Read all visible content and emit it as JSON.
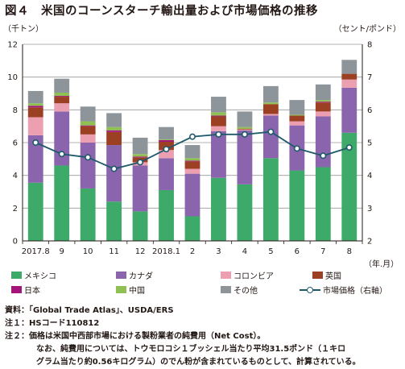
{
  "title": "図４　米国のコーンスターチ輸出量および市場価格の推移",
  "chart_data": {
    "type": "bar",
    "stacked": true,
    "categories": [
      "2017.8",
      "9",
      "10",
      "11",
      "12",
      "2018.1",
      "2",
      "3",
      "4",
      "5",
      "6",
      "7",
      "8"
    ],
    "xlabel": "（年.月）",
    "ylabel_left": "（千トン）",
    "ylabel_right": "（セント/ポンド）",
    "ylim_left": [
      0,
      12
    ],
    "yticks_left": [
      0,
      2,
      4,
      6,
      8,
      10,
      12
    ],
    "ylim_right": [
      2,
      8
    ],
    "yticks_right": [
      2,
      3,
      4,
      5,
      6,
      7,
      8
    ],
    "grid": true,
    "legend_position": "bottom",
    "series": [
      {
        "name": "メキシコ",
        "color": "#3daa6a",
        "values": [
          3.55,
          4.6,
          3.2,
          2.4,
          1.8,
          3.1,
          1.5,
          3.85,
          3.45,
          5.05,
          4.3,
          4.5,
          6.6
        ]
      },
      {
        "name": "カナダ",
        "color": "#8a65ad",
        "values": [
          2.9,
          3.3,
          2.8,
          3.45,
          2.8,
          1.95,
          2.6,
          2.85,
          3.3,
          2.6,
          2.75,
          3.1,
          2.75
        ]
      },
      {
        "name": "コロンビア",
        "color": "#ec9fb0",
        "values": [
          1.1,
          0.5,
          0.5,
          0.0,
          0.2,
          0.5,
          0.3,
          0.3,
          0.05,
          0.1,
          0.25,
          0.3,
          0.5
        ]
      },
      {
        "name": "英国",
        "color": "#9c4023",
        "values": [
          0.6,
          0.4,
          0.5,
          0.8,
          0.3,
          0.5,
          0.45,
          0.6,
          0.05,
          0.6,
          0.35,
          0.55,
          0.35
        ]
      },
      {
        "name": "日本",
        "color": "#a3157a",
        "values": [
          0.1,
          0.05,
          0.05,
          0.1,
          0.05,
          0.1,
          0.05,
          0.05,
          0.0,
          0.0,
          0.0,
          0.05,
          0.0
        ]
      },
      {
        "name": "中国",
        "color": "#8ec152",
        "values": [
          0.15,
          0.2,
          0.25,
          0.2,
          0.15,
          0.05,
          0.15,
          0.2,
          0.1,
          0.1,
          0.05,
          0.1,
          0.0
        ]
      },
      {
        "name": "その他",
        "color": "#8d959b",
        "values": [
          0.75,
          0.85,
          0.9,
          0.85,
          1.0,
          0.75,
          0.8,
          0.95,
          0.95,
          1.0,
          0.9,
          0.95,
          0.85
        ]
      }
    ],
    "line_series": {
      "name": "市場価格（右軸）",
      "color": "#1e5a6a",
      "axis": "right",
      "values": [
        5.0,
        4.65,
        4.55,
        4.2,
        4.4,
        4.8,
        5.18,
        5.25,
        5.25,
        5.33,
        4.82,
        4.6,
        4.85
      ]
    }
  },
  "notes": {
    "source": "資料：「Global Trade Atlas」、USDA/ERS",
    "note1": "注１：HSコード110812",
    "note2": "注２：価格は米国中西部市場における製粉業者の純費用（Net Cost）。",
    "note2_line2": "なお、純費用については、トウモロコシ１ブッシェル当たり平均31.5ポンド（１キロ",
    "note2_line3": "グラム当たり約0.56キログラム）のでん粉が含まれているものとして、計算されている。"
  }
}
